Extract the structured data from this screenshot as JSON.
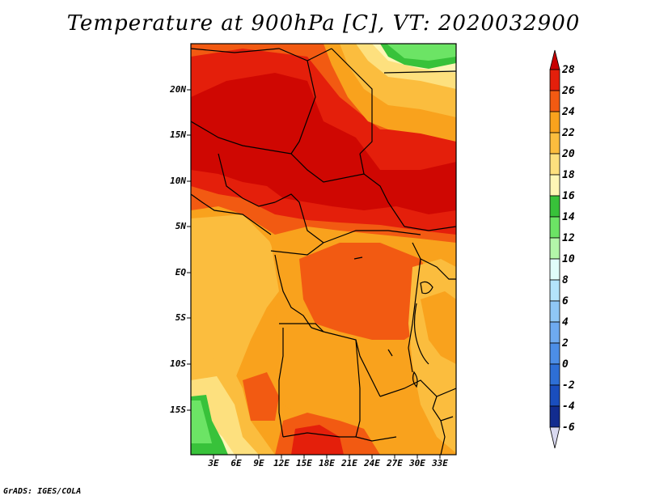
{
  "title": "Temperature at 900hPa [C], VT: 2020032900",
  "credit": "GrADS: IGES/COLA",
  "map": {
    "lat_labels": [
      "20N",
      "15N",
      "10N",
      "5N",
      "EQ",
      "5S",
      "10S",
      "15S"
    ],
    "lon_labels": [
      "3E",
      "6E",
      "9E",
      "12E",
      "15E",
      "18E",
      "21E",
      "24E",
      "27E",
      "30E",
      "33E"
    ]
  },
  "colorbar": {
    "levels": [
      "28",
      "26",
      "24",
      "22",
      "20",
      "18",
      "16",
      "14",
      "12",
      "10",
      "8",
      "6",
      "4",
      "2",
      "0",
      "-2",
      "-4",
      "-6"
    ],
    "colors": {
      "gt28": "#c80000",
      "26_28": "#e41f0b",
      "24_26": "#f25a12",
      "22_24": "#f9a21d",
      "20_22": "#fbbd3e",
      "18_20": "#fde07e",
      "16_18": "#fef6b6",
      "14_16": "#38c23a",
      "12_14": "#6ce465",
      "10_12": "#b3f6a9",
      "8_10": "#e0fdfa",
      "6_8": "#b4e4fb",
      "4_6": "#8fc7f5",
      "2_4": "#6eaaf0",
      "0_2": "#4c8ee7",
      "m2_0": "#2e6fd6",
      "m4_m2": "#1a4ebe",
      "m6_m4": "#122c8f",
      "lt_m6": "#d9d9f0"
    }
  }
}
